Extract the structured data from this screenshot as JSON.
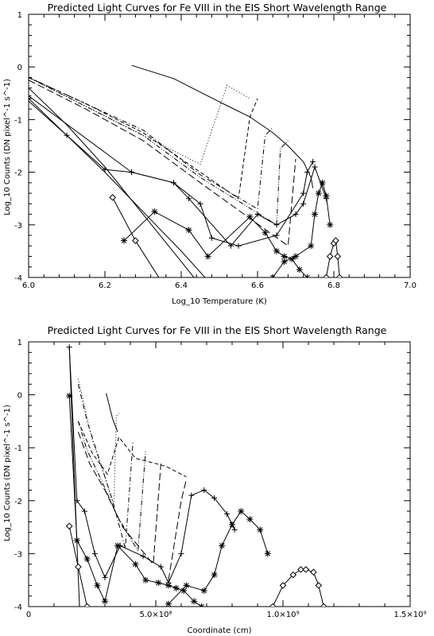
{
  "chart_data": [
    {
      "type": "line",
      "title": "Predicted Light Curves for Fe VIII in the EIS Short Wavelength Range",
      "xlabel": "Log_10 Temperature (K)",
      "ylabel": "Log_10 Counts (DN pixel^-1 s^-1)",
      "xlim": [
        6.0,
        7.0
      ],
      "ylim": [
        -4,
        1
      ],
      "xtick_labels": [
        "6.0",
        "6.2",
        "6.4",
        "6.6",
        "6.8",
        "7.0"
      ],
      "xtick_values": [
        6.0,
        6.2,
        6.4,
        6.6,
        6.8,
        7.0
      ],
      "ytick_labels": [
        "1",
        "0",
        "-1",
        "-2",
        "-3",
        "-4"
      ],
      "ytick_values": [
        1,
        0,
        -1,
        -2,
        -3,
        -4
      ],
      "grid": false,
      "series": [
        {
          "style": "solid",
          "marker": "none",
          "x": [
            6.27,
            6.38,
            6.51,
            6.58
          ],
          "y": [
            0.03,
            -0.22,
            -0.7,
            -0.95
          ]
        },
        {
          "style": "solid",
          "marker": "none",
          "x": [
            6.58,
            6.64,
            6.68,
            6.72,
            6.74,
            6.745
          ],
          "y": [
            -0.95,
            -1.25,
            -1.5,
            -1.8,
            -2.1,
            -2.3
          ]
        },
        {
          "style": "dotted",
          "marker": "none",
          "x": [
            6.0,
            6.15,
            6.3,
            6.45,
            6.52,
            6.58
          ],
          "y": [
            -0.2,
            -0.75,
            -1.3,
            -1.85,
            -0.35,
            -0.6
          ]
        },
        {
          "style": "dashed",
          "marker": "none",
          "x": [
            6.0,
            6.15,
            6.3,
            6.45,
            6.55,
            6.58,
            6.6
          ],
          "y": [
            -0.2,
            -0.7,
            -1.25,
            -2.0,
            -2.5,
            -0.95,
            -0.6
          ]
        },
        {
          "style": "dashdot",
          "marker": "none",
          "x": [
            6.0,
            6.15,
            6.3,
            6.45,
            6.6,
            6.62,
            6.64
          ],
          "y": [
            -0.2,
            -0.7,
            -1.2,
            -2.05,
            -2.7,
            -1.3,
            -1.15
          ]
        },
        {
          "style": "dashdotdot",
          "marker": "none",
          "x": [
            6.0,
            6.15,
            6.3,
            6.45,
            6.65,
            6.66,
            6.68
          ],
          "y": [
            -0.2,
            -0.75,
            -1.3,
            -2.1,
            -3.0,
            -1.55,
            -1.4
          ]
        },
        {
          "style": "longdash",
          "marker": "none",
          "x": [
            6.0,
            6.15,
            6.3,
            6.45,
            6.68,
            6.7
          ],
          "y": [
            -0.25,
            -0.8,
            -1.4,
            -2.2,
            -3.4,
            -1.75
          ]
        },
        {
          "style": "solid",
          "marker": "none",
          "x": [
            6.0,
            6.1,
            6.2,
            6.3,
            6.4,
            6.5
          ],
          "y": [
            -0.4,
            -1.1,
            -1.9,
            -2.8,
            -3.7,
            -4.6
          ]
        },
        {
          "style": "solid",
          "marker": "none",
          "x": [
            6.0,
            6.1,
            6.2,
            6.3,
            6.4,
            6.5
          ],
          "y": [
            -0.65,
            -1.3,
            -2.0,
            -2.75,
            -3.5,
            -4.3
          ]
        },
        {
          "style": "solid",
          "marker": "plus",
          "x": [
            6.0,
            6.27,
            6.38,
            6.42,
            6.53,
            6.6,
            6.65,
            6.7,
            6.72,
            6.75,
            6.78
          ],
          "y": [
            -0.55,
            -2.0,
            -2.2,
            -2.5,
            -3.4,
            -2.8,
            -3.0,
            -2.8,
            -2.6,
            -1.9,
            -2.5
          ]
        },
        {
          "style": "solid",
          "marker": "plus",
          "x": [
            6.0,
            6.1,
            6.2,
            6.27,
            6.38,
            6.45,
            6.48,
            6.55,
            6.65,
            6.72,
            6.73,
            6.745
          ],
          "y": [
            -0.6,
            -1.3,
            -1.95,
            -2.0,
            -2.2,
            -2.6,
            -3.25,
            -3.4,
            -3.2,
            -2.4,
            -2.0,
            -1.8
          ]
        },
        {
          "style": "solid",
          "marker": "asterisk",
          "x": [
            6.25,
            6.33,
            6.42,
            6.47,
            6.58,
            6.62,
            6.65,
            6.67,
            6.69,
            6.71,
            6.73
          ],
          "y": [
            -3.3,
            -2.75,
            -3.1,
            -3.6,
            -2.85,
            -3.15,
            -3.5,
            -3.6,
            -3.65,
            -3.85,
            -4.0
          ]
        },
        {
          "style": "solid",
          "marker": "asterisk",
          "x": [
            6.64,
            6.67,
            6.7,
            6.74,
            6.75,
            6.76,
            6.77,
            6.78,
            6.79
          ],
          "y": [
            -4.0,
            -3.7,
            -3.6,
            -3.4,
            -2.8,
            -2.4,
            -2.2,
            -2.45,
            -3.0
          ]
        },
        {
          "style": "solid",
          "marker": "diamond",
          "x": [
            6.22,
            6.28,
            6.35
          ],
          "y": [
            -2.48,
            -3.3,
            -4.1
          ]
        },
        {
          "style": "solid",
          "marker": "diamond",
          "x": [
            6.78,
            6.79,
            6.8,
            6.805,
            6.81,
            6.815
          ],
          "y": [
            -4.0,
            -3.6,
            -3.35,
            -3.3,
            -3.6,
            -4.0
          ]
        }
      ]
    },
    {
      "type": "line",
      "title": "Predicted Light Curves for Fe VIII in the EIS Short Wavelength Range",
      "xlabel": "Coordinate (cm)",
      "ylabel": "Log_10 Counts (DN pixel^-1 s^-1)",
      "xlim": [
        0,
        1500000000.0
      ],
      "ylim": [
        -4,
        1
      ],
      "xtick_labels": [
        "0",
        "5.0×10⁸",
        "1.0×10⁹",
        "1.5×10⁹"
      ],
      "xtick_values": [
        0,
        500000000.0,
        1000000000.0,
        1500000000.0
      ],
      "ytick_labels": [
        "1",
        "0",
        "-1",
        "-2",
        "-3",
        "-4"
      ],
      "ytick_values": [
        1,
        0,
        -1,
        -2,
        -3,
        -4
      ],
      "grid": false,
      "series": [
        {
          "style": "solid",
          "marker": "none",
          "x": [
            305000000.0,
            330000000.0,
            350000000.0
          ],
          "y": [
            0.03,
            -0.45,
            -0.7
          ]
        },
        {
          "style": "dotted",
          "marker": "none",
          "x": [
            195000000.0,
            250000000.0,
            310000000.0,
            335000000.0,
            345000000.0,
            355000000.0
          ],
          "y": [
            0.3,
            -0.85,
            -1.7,
            -2.1,
            -0.4,
            -0.35
          ]
        },
        {
          "style": "dashed",
          "marker": "none",
          "x": [
            195000000.0,
            250000000.0,
            310000000.0,
            355000000.0,
            420000000.0,
            540000000.0,
            620000000.0
          ],
          "y": [
            -0.5,
            -1.1,
            -1.5,
            -0.8,
            -1.2,
            -1.35,
            -1.55
          ]
        },
        {
          "style": "dashdot",
          "marker": "none",
          "x": [
            195000000.0,
            230000000.0,
            270000000.0,
            330000000.0,
            380000000.0,
            410000000.0
          ],
          "y": [
            0.2,
            -0.5,
            -1.1,
            -2.0,
            -2.9,
            -0.9
          ]
        },
        {
          "style": "dashdotdot",
          "marker": "none",
          "x": [
            195000000.0,
            230000000.0,
            280000000.0,
            350000000.0,
            430000000.0,
            460000000.0
          ],
          "y": [
            -0.5,
            -1.05,
            -1.55,
            -2.3,
            -2.95,
            -1.05
          ]
        },
        {
          "style": "longdash",
          "marker": "none",
          "x": [
            195000000.0,
            240000000.0,
            300000000.0,
            370000000.0,
            490000000.0,
            520000000.0
          ],
          "y": [
            -0.7,
            -1.3,
            -1.8,
            -2.5,
            -3.2,
            -1.3
          ]
        },
        {
          "style": "longdash",
          "marker": "none",
          "x": [
            550000000.0,
            600000000.0,
            620000000.0
          ],
          "y": [
            -3.5,
            -2.0,
            -1.6
          ]
        },
        {
          "style": "solid",
          "marker": "none",
          "x": [
            160000000.0,
            175000000.0,
            190000000.0,
            205000000.0
          ],
          "y": [
            0.9,
            -1.0,
            -2.8,
            -4.6
          ]
        },
        {
          "style": "solid",
          "marker": "plus",
          "x": [
            160000000.0,
            190000000.0,
            220000000.0,
            260000000.0,
            300000000.0,
            360000000.0,
            450000000.0,
            520000000.0,
            550000000.0,
            600000000.0,
            640000000.0,
            690000000.0,
            730000000.0,
            780000000.0,
            810000000.0
          ],
          "y": [
            0.9,
            -2.0,
            -2.2,
            -3.0,
            -3.45,
            -2.85,
            -3.05,
            -3.25,
            -3.55,
            -3.0,
            -1.9,
            -1.8,
            -1.95,
            -2.25,
            -2.55
          ]
        },
        {
          "style": "solid",
          "marker": "asterisk",
          "x": [
            160000000.0,
            190000000.0,
            230000000.0,
            270000000.0,
            300000000.0,
            350000000.0,
            420000000.0,
            460000000.0,
            510000000.0,
            550000000.0,
            580000000.0,
            610000000.0,
            650000000.0,
            680000000.0
          ],
          "y": [
            -0.02,
            -2.75,
            -3.1,
            -3.6,
            -3.9,
            -2.85,
            -3.2,
            -3.5,
            -3.55,
            -3.6,
            -3.65,
            -3.7,
            -3.9,
            -4.0
          ]
        },
        {
          "style": "solid",
          "marker": "asterisk",
          "x": [
            550000000.0,
            620000000.0,
            690000000.0,
            730000000.0,
            760000000.0,
            800000000.0,
            835000000.0,
            870000000.0,
            910000000.0,
            940000000.0
          ],
          "y": [
            -3.95,
            -3.6,
            -3.7,
            -3.4,
            -2.85,
            -2.45,
            -2.2,
            -2.35,
            -2.55,
            -3.0
          ]
        },
        {
          "style": "solid",
          "marker": "diamond",
          "x": [
            160000000.0,
            195000000.0,
            230000000.0
          ],
          "y": [
            -2.48,
            -3.25,
            -4.0
          ]
        },
        {
          "style": "solid",
          "marker": "diamond",
          "x": [
            960000000.0,
            1000000000.0,
            1040000000.0,
            1070000000.0,
            1090000000.0,
            1120000000.0,
            1140000000.0,
            1160000000.0
          ],
          "y": [
            -4.0,
            -3.6,
            -3.4,
            -3.3,
            -3.3,
            -3.35,
            -3.6,
            -4.0
          ]
        }
      ]
    }
  ]
}
